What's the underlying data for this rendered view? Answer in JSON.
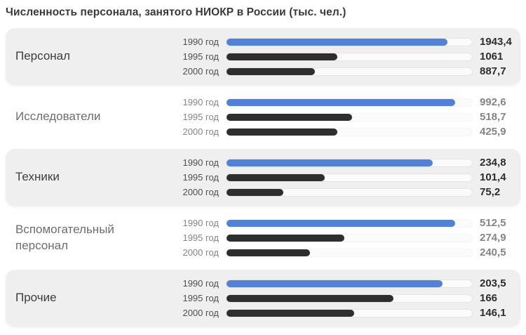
{
  "header": {
    "title": "Численность персонала, занятого НИОКР в России (тыс. чел.)"
  },
  "colors": {
    "bar_1990": "#5282d8",
    "bar_dark": "#2e2e2e",
    "card_bg": "#efefef",
    "track_bg": "#fbfbfb",
    "title_text": "#3a3a3a",
    "card_value_text": "#2d2d2d",
    "plain_value_text": "#858585"
  },
  "chart_data": {
    "type": "bar",
    "orientation": "horizontal",
    "title": "Численность персонала, занятого НИОКР в России (тыс. чел.)",
    "unit": "тыс. чел.",
    "categories": [
      "1990 год",
      "1995 год",
      "2000 год"
    ],
    "legend": "none",
    "grid": false,
    "scale_note": "each group scaled independently; bar_pcts are measured % of track width",
    "groups": [
      {
        "label": "Персонал",
        "card": true,
        "values": [
          1943.4,
          1061,
          887.7
        ],
        "display_values": [
          "1943,4",
          "1061",
          "887,7"
        ],
        "bar_pcts": [
          90,
          45,
          36
        ]
      },
      {
        "label": "Исследователи",
        "card": false,
        "values": [
          992.6,
          518.7,
          425.9
        ],
        "display_values": [
          "992,6",
          "518,7",
          "425,9"
        ],
        "bar_pcts": [
          93,
          51,
          45
        ]
      },
      {
        "label": "Техники",
        "card": true,
        "values": [
          234.8,
          101.4,
          75.2
        ],
        "display_values": [
          "234,8",
          "101,4",
          "75,2"
        ],
        "bar_pcts": [
          84,
          40,
          23
        ]
      },
      {
        "label": "Вспомогательный персонал",
        "card": false,
        "values": [
          512.5,
          274.9,
          240.5
        ],
        "display_values": [
          "512,5",
          "274,9",
          "240,5"
        ],
        "bar_pcts": [
          93,
          48,
          34
        ]
      },
      {
        "label": "Прочие",
        "card": true,
        "values": [
          203.5,
          166,
          146.1
        ],
        "display_values": [
          "203,5",
          "166",
          "146,1"
        ],
        "bar_pcts": [
          88,
          68,
          52
        ]
      }
    ]
  }
}
